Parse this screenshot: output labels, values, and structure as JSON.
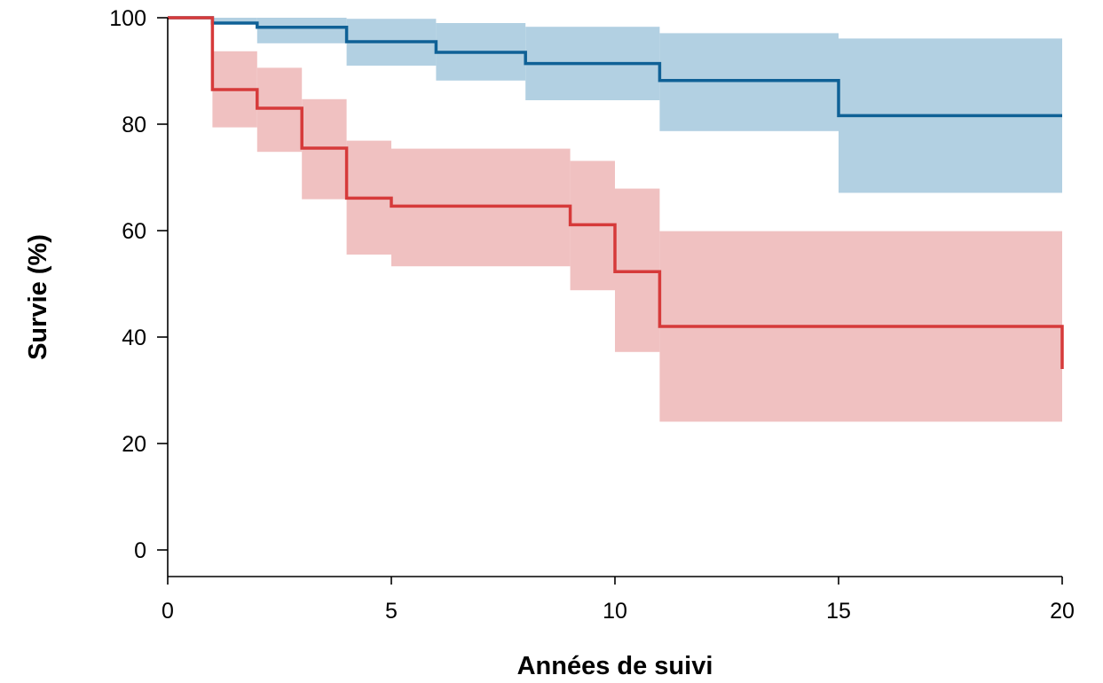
{
  "chart_data": {
    "type": "line",
    "subtype": "kaplan-meier-step",
    "xlabel": "Années de suivi",
    "ylabel": "Survie (%)",
    "xlim": [
      0,
      20
    ],
    "ylim": [
      -5,
      100
    ],
    "xticks": [
      0,
      5,
      10,
      15,
      20
    ],
    "yticks": [
      0,
      20,
      40,
      60,
      80,
      100
    ],
    "grid": false,
    "series": [
      {
        "color": "#0f6196",
        "band_color": "#b2d0e2",
        "steps": [
          {
            "x": 0,
            "y": 100,
            "lower": 100,
            "upper": 100
          },
          {
            "x": 1,
            "y": 99,
            "lower": 99,
            "upper": 100
          },
          {
            "x": 2,
            "y": 98.2,
            "lower": 95.2,
            "upper": 100
          },
          {
            "x": 4,
            "y": 95.5,
            "lower": 91,
            "upper": 99.8
          },
          {
            "x": 6,
            "y": 93.5,
            "lower": 88.2,
            "upper": 99
          },
          {
            "x": 8,
            "y": 91.4,
            "lower": 84.5,
            "upper": 98.3
          },
          {
            "x": 11,
            "y": 88.2,
            "lower": 78.7,
            "upper": 97.1
          },
          {
            "x": 15,
            "y": 81.6,
            "lower": 67.1,
            "upper": 96.1
          }
        ],
        "end_x": 20
      },
      {
        "color": "#d63a3a",
        "band_color": "#f0c1c1",
        "steps": [
          {
            "x": 0,
            "y": 100,
            "lower": 100,
            "upper": 100
          },
          {
            "x": 1,
            "y": 86.5,
            "lower": 79.4,
            "upper": 93.7
          },
          {
            "x": 2,
            "y": 83,
            "lower": 74.8,
            "upper": 90.6
          },
          {
            "x": 3,
            "y": 75.5,
            "lower": 65.9,
            "upper": 84.7
          },
          {
            "x": 4,
            "y": 66.1,
            "lower": 55.5,
            "upper": 76.9
          },
          {
            "x": 5,
            "y": 64.6,
            "lower": 53.3,
            "upper": 75.4
          },
          {
            "x": 9,
            "y": 61.1,
            "lower": 48.8,
            "upper": 73.1
          },
          {
            "x": 10,
            "y": 52.3,
            "lower": 37.2,
            "upper": 67.9
          },
          {
            "x": 11,
            "y": 42,
            "lower": 24.1,
            "upper": 59.9
          }
        ],
        "end_x": 20,
        "final_drop": 34
      }
    ]
  }
}
